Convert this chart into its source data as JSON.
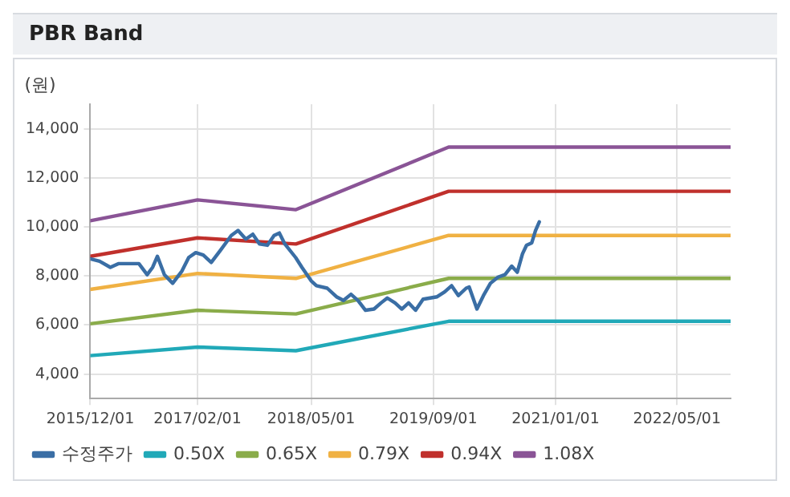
{
  "chart_data": {
    "type": "line",
    "title": "PBR Band",
    "ylabel": "(원)",
    "xlim": [
      "2015-12-01",
      "2022-12-01"
    ],
    "xticks": [
      {
        "value": "2015-12-01",
        "label": "2015/12/01"
      },
      {
        "value": "2017-02-01",
        "label": "2017/02/01"
      },
      {
        "value": "2018-05-01",
        "label": "2018/05/01"
      },
      {
        "value": "2019-09-01",
        "label": "2019/09/01"
      },
      {
        "value": "2021-01-01",
        "label": "2021/01/01"
      },
      {
        "value": "2022-05-01",
        "label": "2022/05/01"
      }
    ],
    "ylim": [
      3000,
      15000
    ],
    "yticks": [
      {
        "value": 4000,
        "label": "4,000"
      },
      {
        "value": 6000,
        "label": "6,000"
      },
      {
        "value": 8000,
        "label": "8,000"
      },
      {
        "value": 10000,
        "label": "10,000"
      },
      {
        "value": 12000,
        "label": "12,000"
      },
      {
        "value": 14000,
        "label": "14,000"
      }
    ],
    "grid": true,
    "legend": "bottom",
    "marker": "none",
    "line_style": "solid",
    "series": [
      {
        "name": "수정주가",
        "color": "#3a6ea5",
        "x": [
          "2015-12-01",
          "2016-01-07",
          "2016-02-19",
          "2016-03-22",
          "2016-06-12",
          "2016-07-15",
          "2016-08-06",
          "2016-08-25",
          "2016-09-22",
          "2016-10-25",
          "2016-12-01",
          "2016-12-28",
          "2017-01-25",
          "2017-02-24",
          "2017-03-28",
          "2017-05-04",
          "2017-06-16",
          "2017-07-13",
          "2017-08-13",
          "2017-09-10",
          "2017-10-07",
          "2017-11-07",
          "2017-12-04",
          "2017-12-25",
          "2018-01-16",
          "2018-02-28",
          "2018-03-25",
          "2018-05-01",
          "2018-05-22",
          "2018-07-04",
          "2018-08-10",
          "2018-09-07",
          "2018-10-07",
          "2018-11-04",
          "2018-12-04",
          "2019-01-07",
          "2019-02-04",
          "2019-03-01",
          "2019-04-01",
          "2019-04-28",
          "2019-05-25",
          "2019-06-22",
          "2019-07-22",
          "2019-08-19",
          "2019-09-16",
          "2019-10-16",
          "2019-11-13",
          "2019-12-10",
          "2020-01-10",
          "2020-01-22",
          "2020-02-22",
          "2020-03-19",
          "2020-04-16",
          "2020-05-16",
          "2020-06-13",
          "2020-07-10",
          "2020-08-01",
          "2020-08-22",
          "2020-09-07",
          "2020-09-28",
          "2020-10-13",
          "2020-10-28"
        ],
        "values": [
          8700,
          8600,
          8350,
          8500,
          8500,
          8050,
          8350,
          8800,
          8050,
          7700,
          8200,
          8750,
          8950,
          8850,
          8550,
          9050,
          9650,
          9850,
          9500,
          9700,
          9300,
          9250,
          9650,
          9750,
          9300,
          8750,
          8350,
          7800,
          7600,
          7500,
          7150,
          7000,
          7250,
          7000,
          6600,
          6650,
          6900,
          7100,
          6900,
          6650,
          6900,
          6600,
          7050,
          7100,
          7150,
          7350,
          7600,
          7200,
          7500,
          7550,
          6650,
          7200,
          7700,
          7950,
          8050,
          8400,
          8150,
          8900,
          9250,
          9350,
          9850,
          10200
        ]
      },
      {
        "name": "0.50X",
        "color": "#21a9b8",
        "x": [
          "2015-12-01",
          "2017-02-01",
          "2018-03-01",
          "2019-11-01",
          "2022-12-01"
        ],
        "values": [
          4750,
          5100,
          4950,
          6150,
          6150
        ]
      },
      {
        "name": "0.65X",
        "color": "#8aac4a",
        "x": [
          "2015-12-01",
          "2017-02-01",
          "2018-03-01",
          "2019-11-01",
          "2022-12-01"
        ],
        "values": [
          6050,
          6600,
          6450,
          7900,
          7900
        ]
      },
      {
        "name": "0.79X",
        "color": "#f0b143",
        "x": [
          "2015-12-01",
          "2017-02-01",
          "2018-03-01",
          "2019-11-01",
          "2022-12-01"
        ],
        "values": [
          7450,
          8100,
          7900,
          9650,
          9650
        ]
      },
      {
        "name": "0.94X",
        "color": "#c0302c",
        "x": [
          "2015-12-01",
          "2017-02-01",
          "2018-03-01",
          "2019-11-01",
          "2022-12-01"
        ],
        "values": [
          8800,
          9550,
          9300,
          11450,
          11450
        ]
      },
      {
        "name": "1.08X",
        "color": "#8a5496",
        "x": [
          "2015-12-01",
          "2017-02-01",
          "2018-03-01",
          "2019-11-01",
          "2022-12-01"
        ],
        "values": [
          10250,
          11100,
          10700,
          13250,
          13250
        ]
      }
    ]
  }
}
